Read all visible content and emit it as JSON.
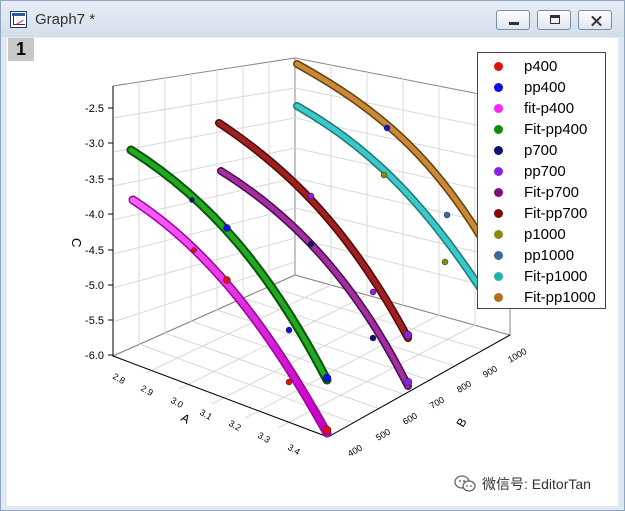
{
  "window": {
    "title": "Graph7 *",
    "layer_label": "1",
    "buttons": [
      "minimize",
      "maximize",
      "close"
    ]
  },
  "axes": {
    "c_label": "C",
    "a_label": "A",
    "b_label": "B",
    "c_ticks": [
      "-2.5",
      "-3.0",
      "-3.5",
      "-4.0",
      "-4.5",
      "-5.0",
      "-5.5",
      "-6.0"
    ],
    "a_ticks": [
      "2.8",
      "2.9",
      "3.0",
      "3.1",
      "3.2",
      "3.3",
      "3.4"
    ],
    "b_ticks": [
      "400",
      "500",
      "600",
      "700",
      "800",
      "900",
      "1000"
    ]
  },
  "legend": [
    {
      "label": "p400",
      "color": "#e01010"
    },
    {
      "label": "pp400",
      "color": "#1010e0"
    },
    {
      "label": "fit-p400",
      "color": "#ff20ff"
    },
    {
      "label": "Fit-pp400",
      "color": "#0e8a0e"
    },
    {
      "label": "p700",
      "color": "#101070"
    },
    {
      "label": "pp700",
      "color": "#8a20e0"
    },
    {
      "label": "Fit-p700",
      "color": "#800a80"
    },
    {
      "label": "Fit-pp700",
      "color": "#800a0a"
    },
    {
      "label": "p1000",
      "color": "#8a8a10"
    },
    {
      "label": "pp1000",
      "color": "#3a6a9a"
    },
    {
      "label": "Fit-p1000",
      "color": "#20b0b0"
    },
    {
      "label": "Fit-pp1000",
      "color": "#b07020"
    }
  ],
  "watermark": {
    "text": "微信号: EditorTan",
    "icon": "wechat-icon"
  }
}
